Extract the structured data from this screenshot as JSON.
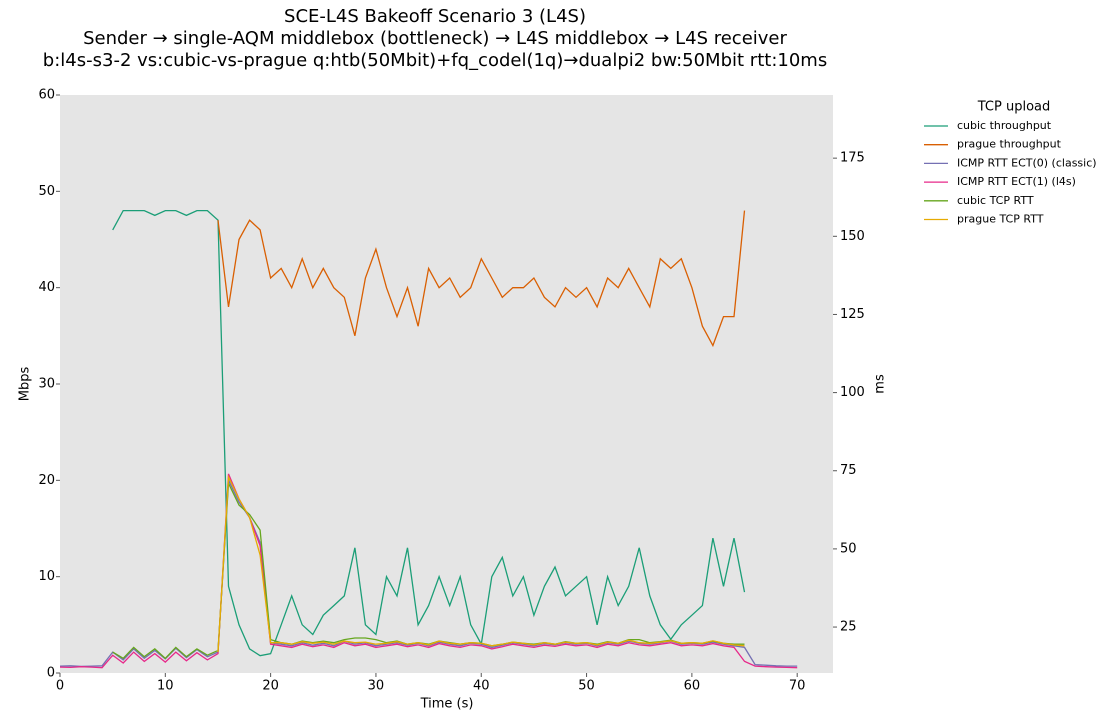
{
  "chart_data": {
    "type": "line",
    "title_lines": [
      "SCE-L4S Bakeoff Scenario 3 (L4S)",
      "Sender → single-AQM middlebox (bottleneck) → L4S middlebox → L4S receiver",
      "b:l4s-s3-2 vs:cubic-vs-prague q:htb(50Mbit)+fq_codel(1q)→dualpi2 bw:50Mbit rtt:10ms"
    ],
    "xlabel": "Time (s)",
    "ylabel": "Mbps",
    "y2label": "ms",
    "legend_title": "TCP upload",
    "legend": "outside-right",
    "xlim": [
      0,
      73.4
    ],
    "xticks": [
      0,
      10,
      20,
      30,
      40,
      50,
      60,
      70
    ],
    "ylim": [
      0,
      60
    ],
    "yticks": [
      0,
      10,
      20,
      30,
      40,
      50,
      60
    ],
    "y2lim": [
      10.3,
      195.2
    ],
    "y2ticks": [
      25,
      50,
      75,
      100,
      125,
      150,
      175
    ],
    "x": [
      0,
      1,
      2,
      3,
      4,
      5,
      6,
      7,
      8,
      9,
      10,
      11,
      12,
      13,
      14,
      15,
      16,
      17,
      18,
      19,
      20,
      21,
      22,
      23,
      24,
      25,
      26,
      27,
      28,
      29,
      30,
      31,
      32,
      33,
      34,
      35,
      36,
      37,
      38,
      39,
      40,
      41,
      42,
      43,
      44,
      45,
      46,
      47,
      48,
      49,
      50,
      51,
      52,
      53,
      54,
      55,
      56,
      57,
      58,
      59,
      60,
      61,
      62,
      63,
      64,
      65,
      66,
      67,
      68,
      69,
      70
    ],
    "series": [
      {
        "name": "cubic throughput",
        "color": "#1b9e77",
        "axis": "y",
        "values": [
          null,
          null,
          null,
          null,
          null,
          46,
          48,
          48,
          48,
          47.5,
          48,
          48,
          47.5,
          48,
          48,
          47,
          9,
          5,
          2.5,
          1.8,
          2,
          5,
          8,
          5,
          4,
          6,
          7,
          8,
          13,
          5,
          4,
          10,
          8,
          13,
          5,
          7,
          10,
          7,
          10,
          5,
          3,
          10,
          12,
          8,
          10,
          6,
          9,
          11,
          8,
          9,
          10,
          5,
          10,
          7,
          9,
          13,
          8,
          5,
          3.5,
          5,
          6,
          7,
          14,
          9,
          14,
          8.4,
          null,
          null,
          null,
          null,
          null
        ]
      },
      {
        "name": "prague throughput",
        "color": "#d95f02",
        "axis": "y",
        "values": [
          null,
          null,
          null,
          null,
          null,
          null,
          null,
          null,
          null,
          null,
          null,
          null,
          null,
          null,
          null,
          47,
          38,
          45,
          47,
          46,
          41,
          42,
          40,
          43,
          40,
          42,
          40,
          39,
          35,
          41,
          44,
          40,
          37,
          40,
          36,
          42,
          40,
          41,
          39,
          40,
          43,
          41,
          39,
          40,
          40,
          41,
          39,
          38,
          40,
          39,
          40,
          38,
          41,
          40,
          42,
          40,
          38,
          43,
          42,
          43,
          40,
          36,
          34,
          37,
          37,
          48,
          null,
          null,
          null,
          null,
          null
        ]
      },
      {
        "name": "ICMP RTT ECT(0) (classic)",
        "color": "#7570b3",
        "axis": "y2",
        "values": [
          12.5,
          12.6,
          12.4,
          12.5,
          12.6,
          17,
          14.5,
          18,
          15,
          17.5,
          14.8,
          18.2,
          15.2,
          17.8,
          15.5,
          17,
          72,
          65,
          60,
          52,
          20,
          19.5,
          19,
          20,
          19.2,
          19.8,
          19,
          20.5,
          19.5,
          20,
          19,
          19.5,
          20,
          19.2,
          19.8,
          19,
          20.2,
          19.5,
          19,
          19.8,
          19.5,
          18.5,
          19.2,
          20,
          19.5,
          19,
          19.7,
          19.3,
          20,
          19.5,
          19.8,
          19,
          20,
          19.5,
          20.5,
          19.8,
          19.5,
          20,
          20.5,
          19.5,
          19.8,
          19.5,
          20.2,
          19.5,
          19,
          18.5,
          13,
          12.8,
          12.6,
          12.5,
          12.5
        ]
      },
      {
        "name": "ICMP RTT ECT(1) (l4s)",
        "color": "#e7298a",
        "axis": "y2",
        "values": [
          12.2,
          12.1,
          12.3,
          12.2,
          12.0,
          16,
          13.5,
          17,
          14,
          16.5,
          13.8,
          17,
          14.2,
          16.8,
          14.5,
          16.5,
          74,
          66,
          60,
          51,
          19.5,
          19,
          18.5,
          19.5,
          18.7,
          19.3,
          18.5,
          20,
          19,
          19.5,
          18.5,
          19,
          19.5,
          18.7,
          19.3,
          18.5,
          19.7,
          19,
          18.5,
          19.3,
          19,
          18,
          18.7,
          19.5,
          19,
          18.5,
          19.2,
          18.8,
          19.5,
          19,
          19.3,
          18.5,
          19.5,
          19,
          20,
          19.3,
          19,
          19.5,
          20,
          19,
          19.3,
          19,
          19.7,
          19,
          18.5,
          14,
          12.5,
          12.3,
          12.2,
          12.1,
          12.0
        ]
      },
      {
        "name": "cubic TCP RTT",
        "color": "#66a61e",
        "axis": "y2",
        "values": [
          null,
          null,
          null,
          null,
          null,
          17,
          15,
          18.5,
          15.5,
          18,
          15,
          18.5,
          15.5,
          18,
          16,
          17.5,
          71,
          64,
          61,
          56,
          21,
          20,
          19.5,
          20.5,
          20,
          20.5,
          20,
          21,
          21.5,
          21.5,
          21,
          20,
          20.5,
          19.5,
          20,
          19.5,
          20.5,
          20,
          19.5,
          20,
          19.8,
          19,
          19.5,
          20.2,
          19.8,
          19.5,
          20,
          19.5,
          20.3,
          19.8,
          20,
          19.5,
          20.3,
          19.8,
          21,
          21,
          20,
          20.3,
          20.8,
          19.8,
          20,
          19.8,
          20.5,
          19.8,
          19.5,
          19.5,
          null,
          null,
          null,
          null,
          null
        ]
      },
      {
        "name": "prague TCP RTT",
        "color": "#e6ab02",
        "axis": "y2",
        "values": [
          null,
          null,
          null,
          null,
          null,
          null,
          null,
          null,
          null,
          null,
          null,
          null,
          null,
          null,
          null,
          17,
          73,
          66,
          60,
          48,
          20,
          20,
          19.5,
          20.3,
          19.8,
          20.2,
          19.5,
          20.5,
          20,
          20.2,
          19.5,
          19.8,
          20.3,
          19.5,
          20,
          19.3,
          20.5,
          19.8,
          19.5,
          20,
          19.8,
          19,
          19.5,
          20.2,
          19.8,
          19.3,
          20,
          19.5,
          20.2,
          19.8,
          20,
          19.3,
          20.2,
          19.8,
          20.8,
          20,
          19.8,
          20.2,
          20.6,
          19.8,
          20,
          19.8,
          20.6,
          19.8,
          19.3,
          19,
          null,
          null,
          null,
          null,
          null
        ]
      }
    ]
  }
}
